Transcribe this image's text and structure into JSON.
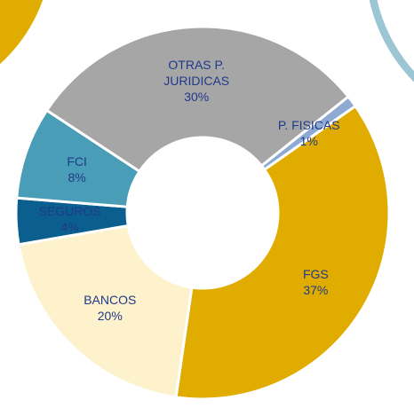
{
  "chart_data": {
    "type": "donut",
    "categories": [
      "FGS",
      "BANCOS",
      "SEGUROS",
      "FCI",
      "OTRAS P. JURIDICAS",
      "P. FISICAS"
    ],
    "values": [
      37,
      20,
      4,
      8,
      30,
      1
    ],
    "value_labels": [
      "37%",
      "20%",
      "4%",
      "8%",
      "30%",
      "1%"
    ],
    "colors": [
      "#e0ac00",
      "#fdf2cc",
      "#0b5f8e",
      "#4a9db6",
      "#a6a6a6",
      "#8eaad3"
    ]
  }
}
